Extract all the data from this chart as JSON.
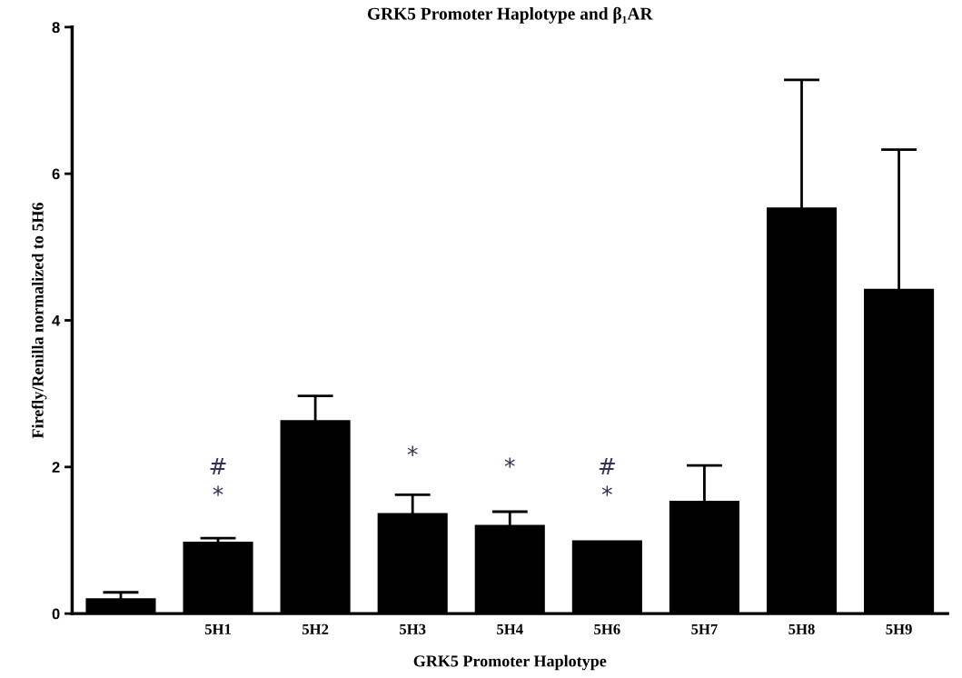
{
  "chart_data": {
    "type": "bar",
    "title": "GRK5 Promoter Haplotype and β₁AR",
    "xlabel": "GRK5 Promoter Haplotype",
    "ylabel": "Firefly/Renilla normalized to 5H6",
    "categories": [
      null,
      "5H1",
      "5H2",
      "5H3",
      "5H4",
      "5H6",
      "5H7",
      "5H8",
      "5H9"
    ],
    "values": [
      0.21,
      0.98,
      2.64,
      1.37,
      1.21,
      1.0,
      1.54,
      5.54,
      4.43
    ],
    "errors": [
      0.08,
      0.05,
      0.33,
      0.25,
      0.18,
      null,
      0.48,
      1.74,
      1.9
    ],
    "color": "#000000",
    "ylim": [
      0,
      8
    ],
    "yticks": [
      0,
      2,
      4,
      6,
      8
    ],
    "grid": false,
    "legend": false,
    "annotations": [
      "*",
      "#",
      "*",
      "*",
      "*",
      "#"
    ]
  }
}
